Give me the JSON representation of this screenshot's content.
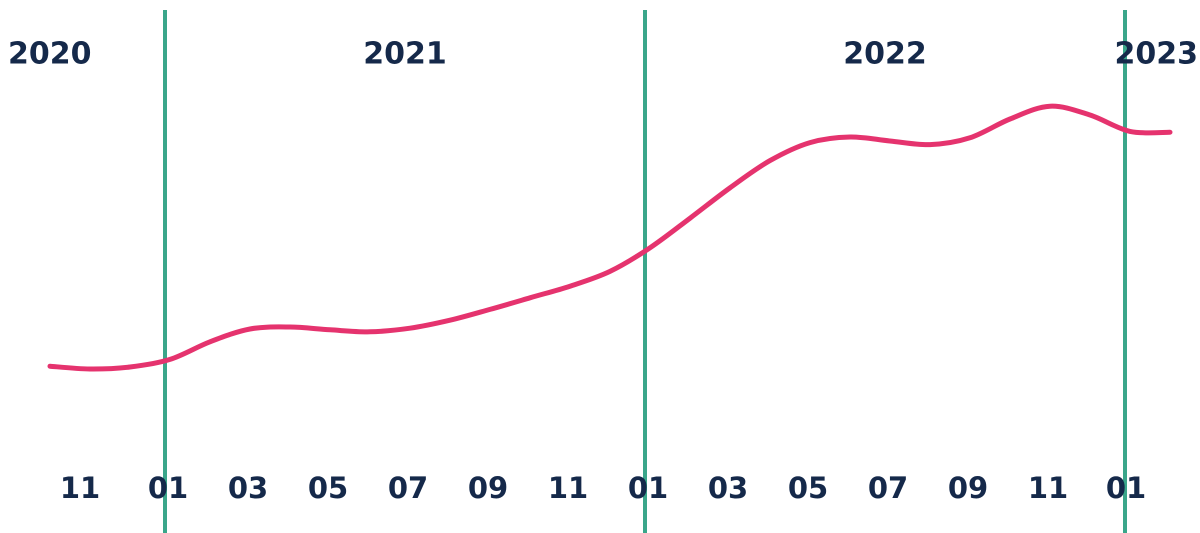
{
  "chart_data": {
    "type": "line",
    "title": "",
    "xlabel": "",
    "ylabel": "",
    "colors": {
      "line": "#e5336e",
      "year_divider": "#3aa68a",
      "text": "#15294a",
      "background": "#ffffff"
    },
    "years": [
      "2020",
      "2021",
      "2022",
      "2023"
    ],
    "x_tick_labels": [
      "11",
      "01",
      "03",
      "05",
      "07",
      "09",
      "11",
      "01",
      "03",
      "05",
      "07",
      "09",
      "11",
      "01"
    ],
    "year_dividers": [
      "2021-01",
      "2022-01",
      "2023-01"
    ],
    "series": [
      {
        "points": [
          {
            "x": "2020-10",
            "y": 37.7
          },
          {
            "x": "2020-11",
            "y": 37.0
          },
          {
            "x": "2020-12",
            "y": 37.5
          },
          {
            "x": "2021-01",
            "y": 39.4
          },
          {
            "x": "2021-02",
            "y": 43.8
          },
          {
            "x": "2021-03",
            "y": 47.0
          },
          {
            "x": "2021-04",
            "y": 47.5
          },
          {
            "x": "2021-05",
            "y": 46.8
          },
          {
            "x": "2021-06",
            "y": 46.3
          },
          {
            "x": "2021-07",
            "y": 47.2
          },
          {
            "x": "2021-08",
            "y": 49.2
          },
          {
            "x": "2021-09",
            "y": 51.9
          },
          {
            "x": "2021-10",
            "y": 54.8
          },
          {
            "x": "2021-11",
            "y": 57.7
          },
          {
            "x": "2021-12",
            "y": 61.4
          },
          {
            "x": "2022-01",
            "y": 67.3
          },
          {
            "x": "2022-02",
            "y": 74.7
          },
          {
            "x": "2022-03",
            "y": 82.3
          },
          {
            "x": "2022-04",
            "y": 89.1
          },
          {
            "x": "2022-05",
            "y": 93.6
          },
          {
            "x": "2022-06",
            "y": 95.0
          },
          {
            "x": "2022-07",
            "y": 94.0
          },
          {
            "x": "2022-08",
            "y": 93.1
          },
          {
            "x": "2022-09",
            "y": 94.8
          },
          {
            "x": "2022-10",
            "y": 99.5
          },
          {
            "x": "2022-11",
            "y": 102.7
          },
          {
            "x": "2022-12",
            "y": 100.5
          },
          {
            "x": "2023-01",
            "y": 96.4
          },
          {
            "x": "2023-02",
            "y": 96.2
          }
        ]
      }
    ],
    "grid": false,
    "y_axis_visible": false
  }
}
